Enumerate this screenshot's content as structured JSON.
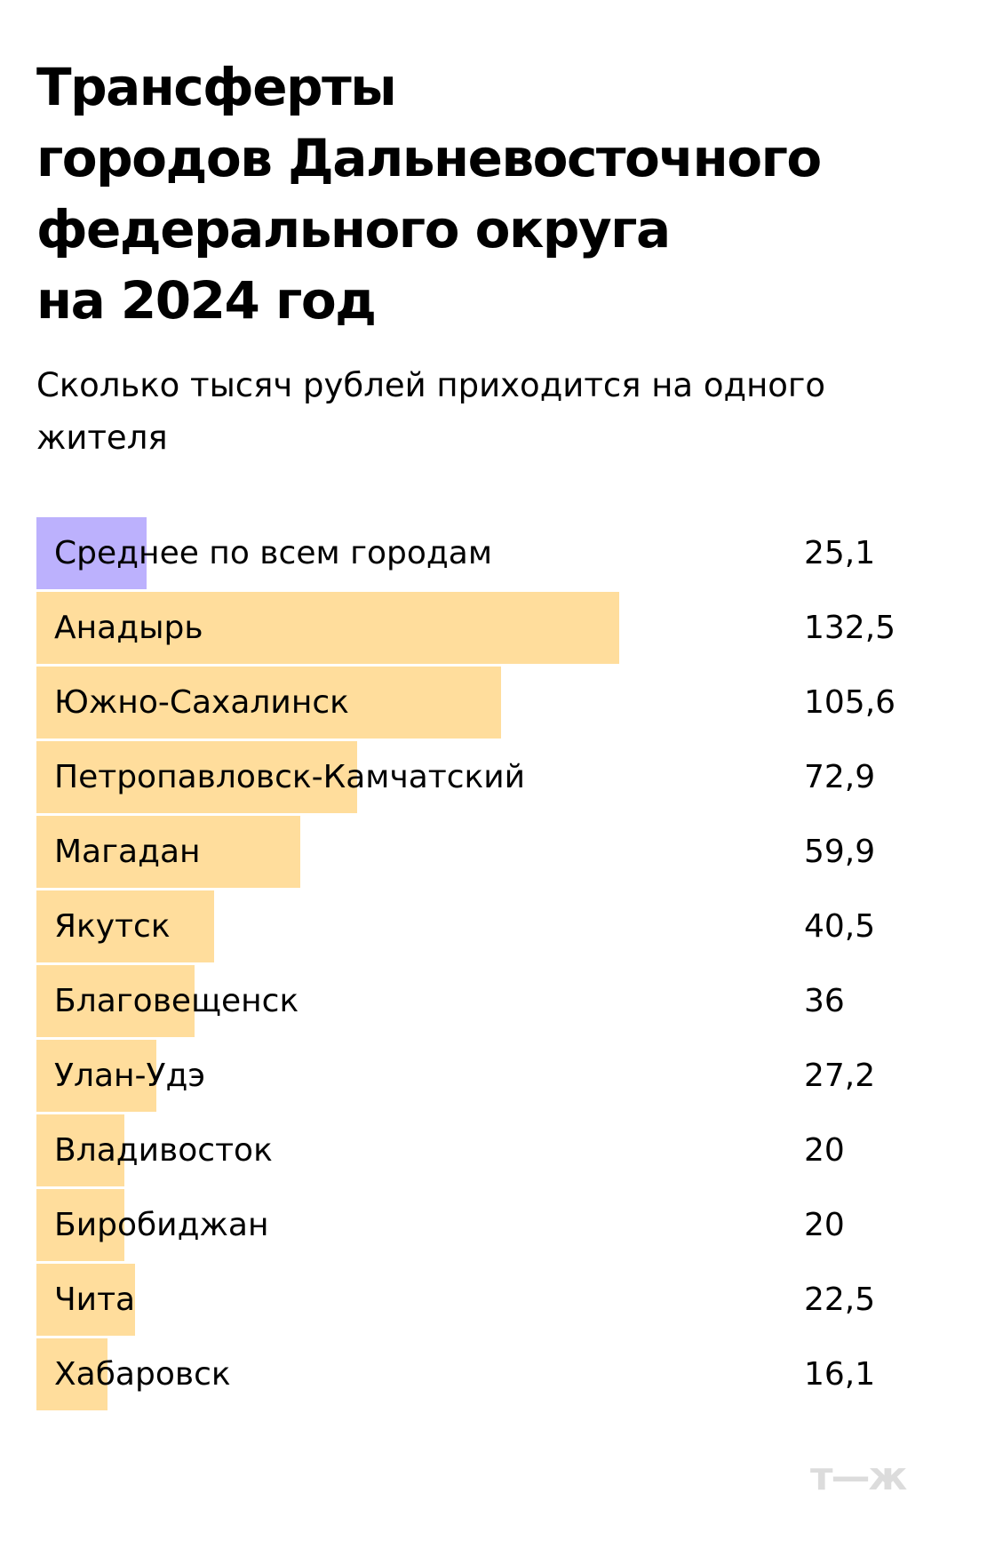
{
  "header": {
    "title_lines": [
      "Трансферты",
      "городов Дальневосточного",
      "федерального округа",
      "на 2024 год"
    ],
    "subtitle": "Сколько тысяч рублей приходится на одного жителя"
  },
  "colors": {
    "average_bar": "#bcb1fd",
    "city_bar": "#ffdd9c",
    "logo": "#dcdcdc"
  },
  "logo": "т—ж",
  "chart_data": {
    "type": "bar",
    "orientation": "horizontal",
    "title": "Трансферты городов Дальневосточного федерального округа на 2024 год",
    "subtitle": "Сколько тысяч рублей приходится на одного жителя",
    "xlabel": "",
    "ylabel": "",
    "unit": "тыс. руб. на жителя",
    "grid": false,
    "legend": null,
    "categories": [
      "Среднее по всем городам",
      "Анадырь",
      "Южно-Сахалинск",
      "Петропавловск-Камчатский",
      "Магадан",
      "Якутск",
      "Благовещенск",
      "Улан-Удэ",
      "Владивосток",
      "Биробиджан",
      "Чита",
      "Хабаровск"
    ],
    "values": [
      25.1,
      132.5,
      105.6,
      72.9,
      59.9,
      40.5,
      36,
      27.2,
      20,
      20,
      22.5,
      16.1
    ],
    "value_labels": [
      "25,1",
      "132,5",
      "105,6",
      "72,9",
      "59,9",
      "40,5",
      "36",
      "27,2",
      "20",
      "20",
      "22,5",
      "16,1"
    ],
    "highlight_index": 0
  }
}
